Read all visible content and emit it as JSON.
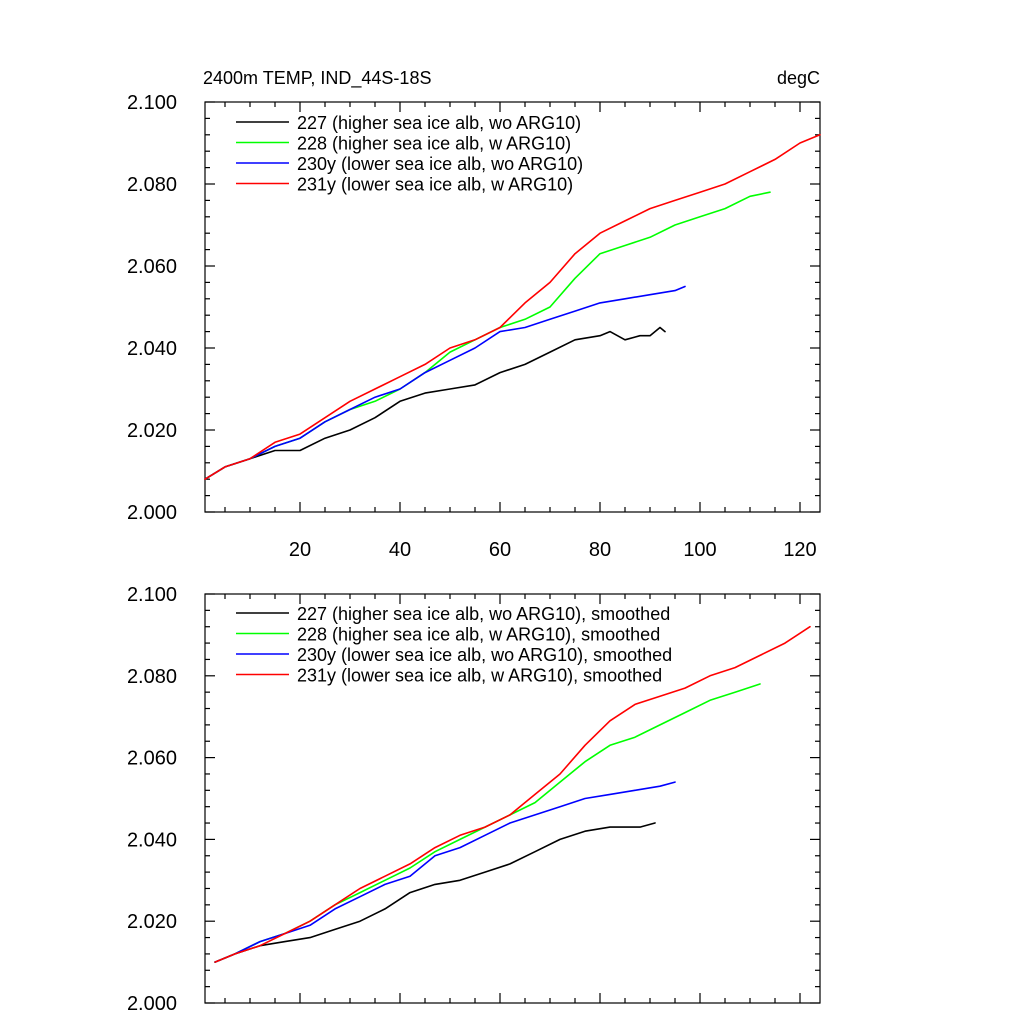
{
  "page_title_left": "2400m TEMP, IND_44S-18S",
  "page_title_right": "degC",
  "chart_data": [
    {
      "type": "line",
      "title": "2400m TEMP, IND_44S-18S",
      "units": "degC",
      "xlim": [
        1,
        124
      ],
      "ylim": [
        2.0,
        2.1
      ],
      "x_tick_labels": [
        "20",
        "40",
        "60",
        "80",
        "100",
        "120"
      ],
      "x_ticks": [
        20,
        40,
        60,
        80,
        100,
        120
      ],
      "y_ticks": [
        2.0,
        2.02,
        2.04,
        2.06,
        2.08,
        2.1
      ],
      "y_tick_labels": [
        "2.000",
        "2.020",
        "2.040",
        "2.060",
        "2.080",
        "2.100"
      ],
      "grid": false,
      "legend_position": "top-left",
      "series": [
        {
          "name": "227 (higher sea ice alb, wo ARG10)",
          "color": "#000000",
          "x": [
            1,
            5,
            10,
            15,
            20,
            25,
            30,
            35,
            40,
            45,
            50,
            55,
            60,
            65,
            70,
            75,
            80,
            82,
            85,
            88,
            90,
            92,
            93
          ],
          "y": [
            2.008,
            2.011,
            2.013,
            2.015,
            2.015,
            2.018,
            2.02,
            2.023,
            2.027,
            2.029,
            2.03,
            2.031,
            2.034,
            2.036,
            2.039,
            2.042,
            2.043,
            2.044,
            2.042,
            2.043,
            2.043,
            2.045,
            2.044
          ]
        },
        {
          "name": "228 (higher sea ice alb, w ARG10)",
          "color": "#00ff00",
          "x": [
            1,
            5,
            10,
            15,
            20,
            25,
            30,
            35,
            40,
            45,
            50,
            55,
            60,
            65,
            70,
            75,
            80,
            85,
            90,
            95,
            100,
            105,
            110,
            114
          ],
          "y": [
            2.008,
            2.011,
            2.013,
            2.016,
            2.018,
            2.022,
            2.025,
            2.027,
            2.03,
            2.034,
            2.039,
            2.042,
            2.045,
            2.047,
            2.05,
            2.057,
            2.063,
            2.065,
            2.067,
            2.07,
            2.072,
            2.074,
            2.077,
            2.078
          ]
        },
        {
          "name": "230y (lower sea ice alb, wo ARG10)",
          "color": "#0000ff",
          "x": [
            1,
            5,
            10,
            15,
            20,
            25,
            30,
            35,
            40,
            45,
            50,
            55,
            60,
            65,
            70,
            75,
            80,
            85,
            90,
            95,
            97
          ],
          "y": [
            2.008,
            2.011,
            2.013,
            2.016,
            2.018,
            2.022,
            2.025,
            2.028,
            2.03,
            2.034,
            2.037,
            2.04,
            2.044,
            2.045,
            2.047,
            2.049,
            2.051,
            2.052,
            2.053,
            2.054,
            2.055
          ]
        },
        {
          "name": "231y (lower sea ice alb, w ARG10)",
          "color": "#ff0000",
          "x": [
            1,
            5,
            10,
            15,
            20,
            25,
            30,
            35,
            40,
            45,
            50,
            55,
            60,
            65,
            70,
            75,
            80,
            85,
            90,
            95,
            100,
            105,
            110,
            115,
            120,
            124
          ],
          "y": [
            2.008,
            2.011,
            2.013,
            2.017,
            2.019,
            2.023,
            2.027,
            2.03,
            2.033,
            2.036,
            2.04,
            2.042,
            2.045,
            2.051,
            2.056,
            2.063,
            2.068,
            2.071,
            2.074,
            2.076,
            2.078,
            2.08,
            2.083,
            2.086,
            2.09,
            2.092
          ]
        }
      ]
    },
    {
      "type": "line",
      "xlim": [
        1,
        124
      ],
      "ylim": [
        2.0,
        2.1
      ],
      "x_ticks": [
        20,
        40,
        60,
        80,
        100,
        120
      ],
      "y_ticks": [
        2.0,
        2.02,
        2.04,
        2.06,
        2.08,
        2.1
      ],
      "y_tick_labels": [
        "2.000",
        "2.020",
        "2.040",
        "2.060",
        "2.080",
        "2.100"
      ],
      "grid": false,
      "legend_position": "top-left",
      "series": [
        {
          "name": "227 (higher sea ice alb, wo ARG10), smoothed",
          "color": "#000000",
          "x": [
            3,
            7,
            12,
            17,
            22,
            27,
            32,
            37,
            42,
            47,
            52,
            57,
            62,
            67,
            72,
            77,
            82,
            85,
            88,
            91
          ],
          "y": [
            2.01,
            2.012,
            2.014,
            2.015,
            2.016,
            2.018,
            2.02,
            2.023,
            2.027,
            2.029,
            2.03,
            2.032,
            2.034,
            2.037,
            2.04,
            2.042,
            2.043,
            2.043,
            2.043,
            2.044
          ]
        },
        {
          "name": "228 (higher sea ice alb, w ARG10), smoothed",
          "color": "#00ff00",
          "x": [
            3,
            7,
            12,
            17,
            22,
            27,
            32,
            37,
            42,
            47,
            52,
            57,
            62,
            67,
            72,
            77,
            82,
            87,
            92,
            97,
            102,
            107,
            112
          ],
          "y": [
            2.01,
            2.012,
            2.015,
            2.017,
            2.02,
            2.024,
            2.027,
            2.03,
            2.033,
            2.037,
            2.04,
            2.043,
            2.046,
            2.049,
            2.054,
            2.059,
            2.063,
            2.065,
            2.068,
            2.071,
            2.074,
            2.076,
            2.078
          ]
        },
        {
          "name": "230y (lower sea ice alb, wo ARG10), smoothed",
          "color": "#0000ff",
          "x": [
            3,
            7,
            12,
            17,
            22,
            27,
            32,
            37,
            42,
            47,
            52,
            57,
            62,
            67,
            72,
            77,
            82,
            87,
            92,
            95
          ],
          "y": [
            2.01,
            2.012,
            2.015,
            2.017,
            2.019,
            2.023,
            2.026,
            2.029,
            2.031,
            2.036,
            2.038,
            2.041,
            2.044,
            2.046,
            2.048,
            2.05,
            2.051,
            2.052,
            2.053,
            2.054
          ]
        },
        {
          "name": "231y (lower sea ice alb, w ARG10), smoothed",
          "color": "#ff0000",
          "x": [
            3,
            7,
            12,
            17,
            22,
            27,
            32,
            37,
            42,
            47,
            52,
            57,
            62,
            67,
            72,
            77,
            82,
            87,
            92,
            97,
            102,
            107,
            112,
            117,
            122
          ],
          "y": [
            2.01,
            2.012,
            2.014,
            2.017,
            2.02,
            2.024,
            2.028,
            2.031,
            2.034,
            2.038,
            2.041,
            2.043,
            2.046,
            2.051,
            2.056,
            2.063,
            2.069,
            2.073,
            2.075,
            2.077,
            2.08,
            2.082,
            2.085,
            2.088,
            2.092
          ]
        }
      ]
    }
  ]
}
